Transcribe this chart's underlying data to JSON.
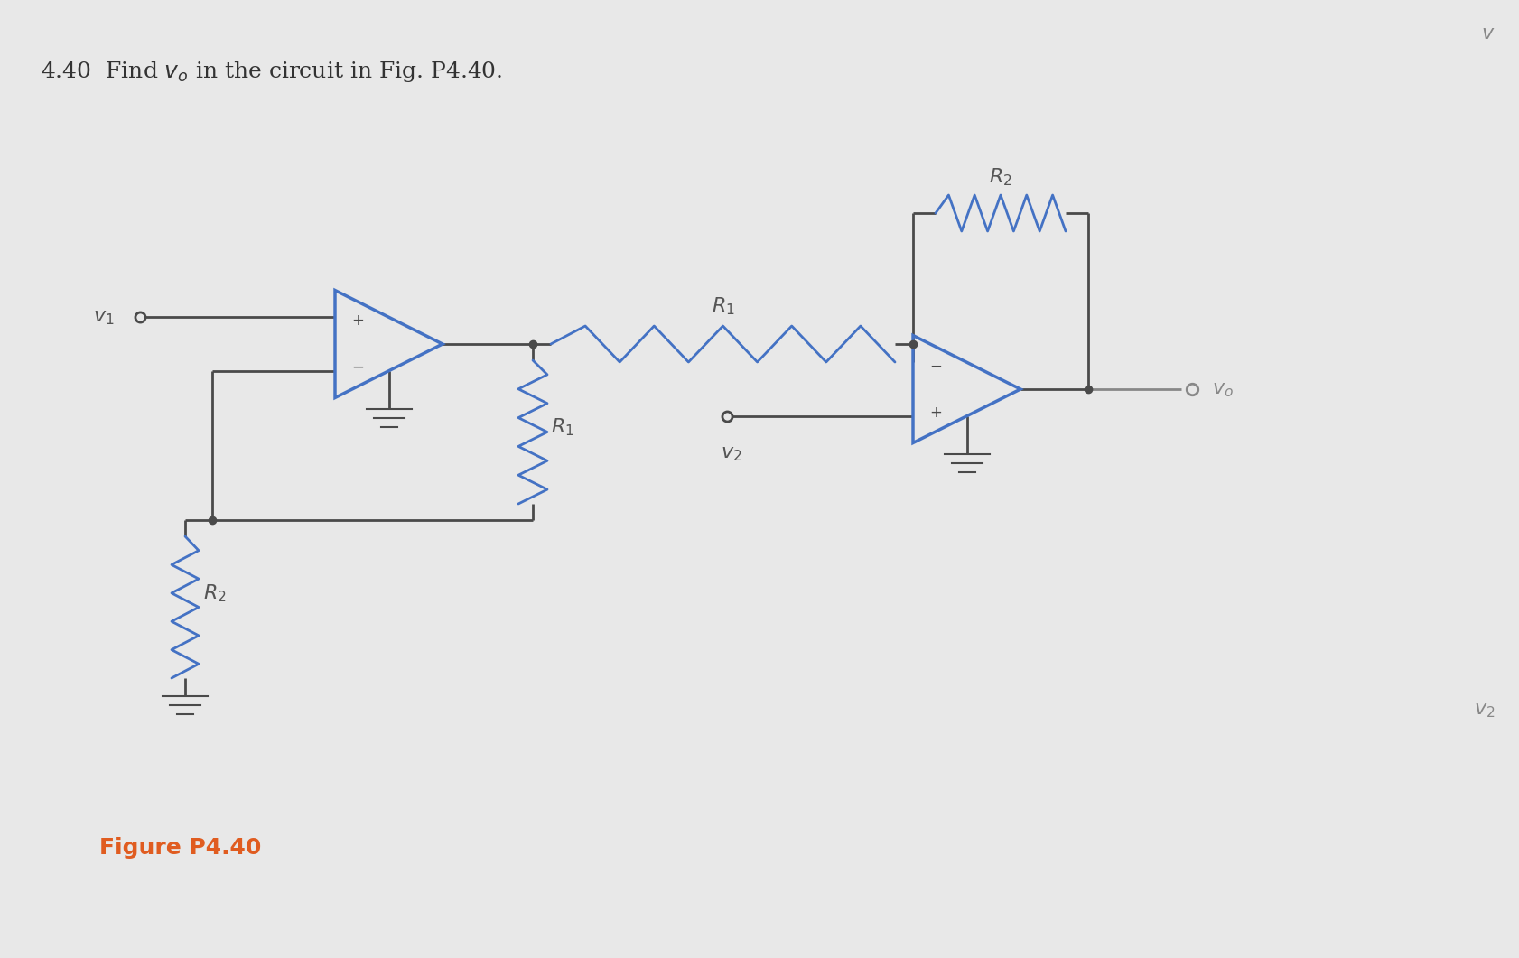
{
  "bg_color": "#e8e8e8",
  "wire_color": "#4a4a4a",
  "blue_color": "#4472c4",
  "gray_color": "#888888",
  "dark_color": "#333333",
  "title_text": "4.40  Find $v_o$ in the circuit in Fig. P4.40.",
  "caption_text": "Figure P4.40",
  "caption_color": "#e05c20",
  "title_fontsize": 18,
  "caption_fontsize": 18,
  "label_fontsize": 16,
  "opamp_color": "#4472c4",
  "lw": 2.0,
  "lw_thin": 1.5
}
